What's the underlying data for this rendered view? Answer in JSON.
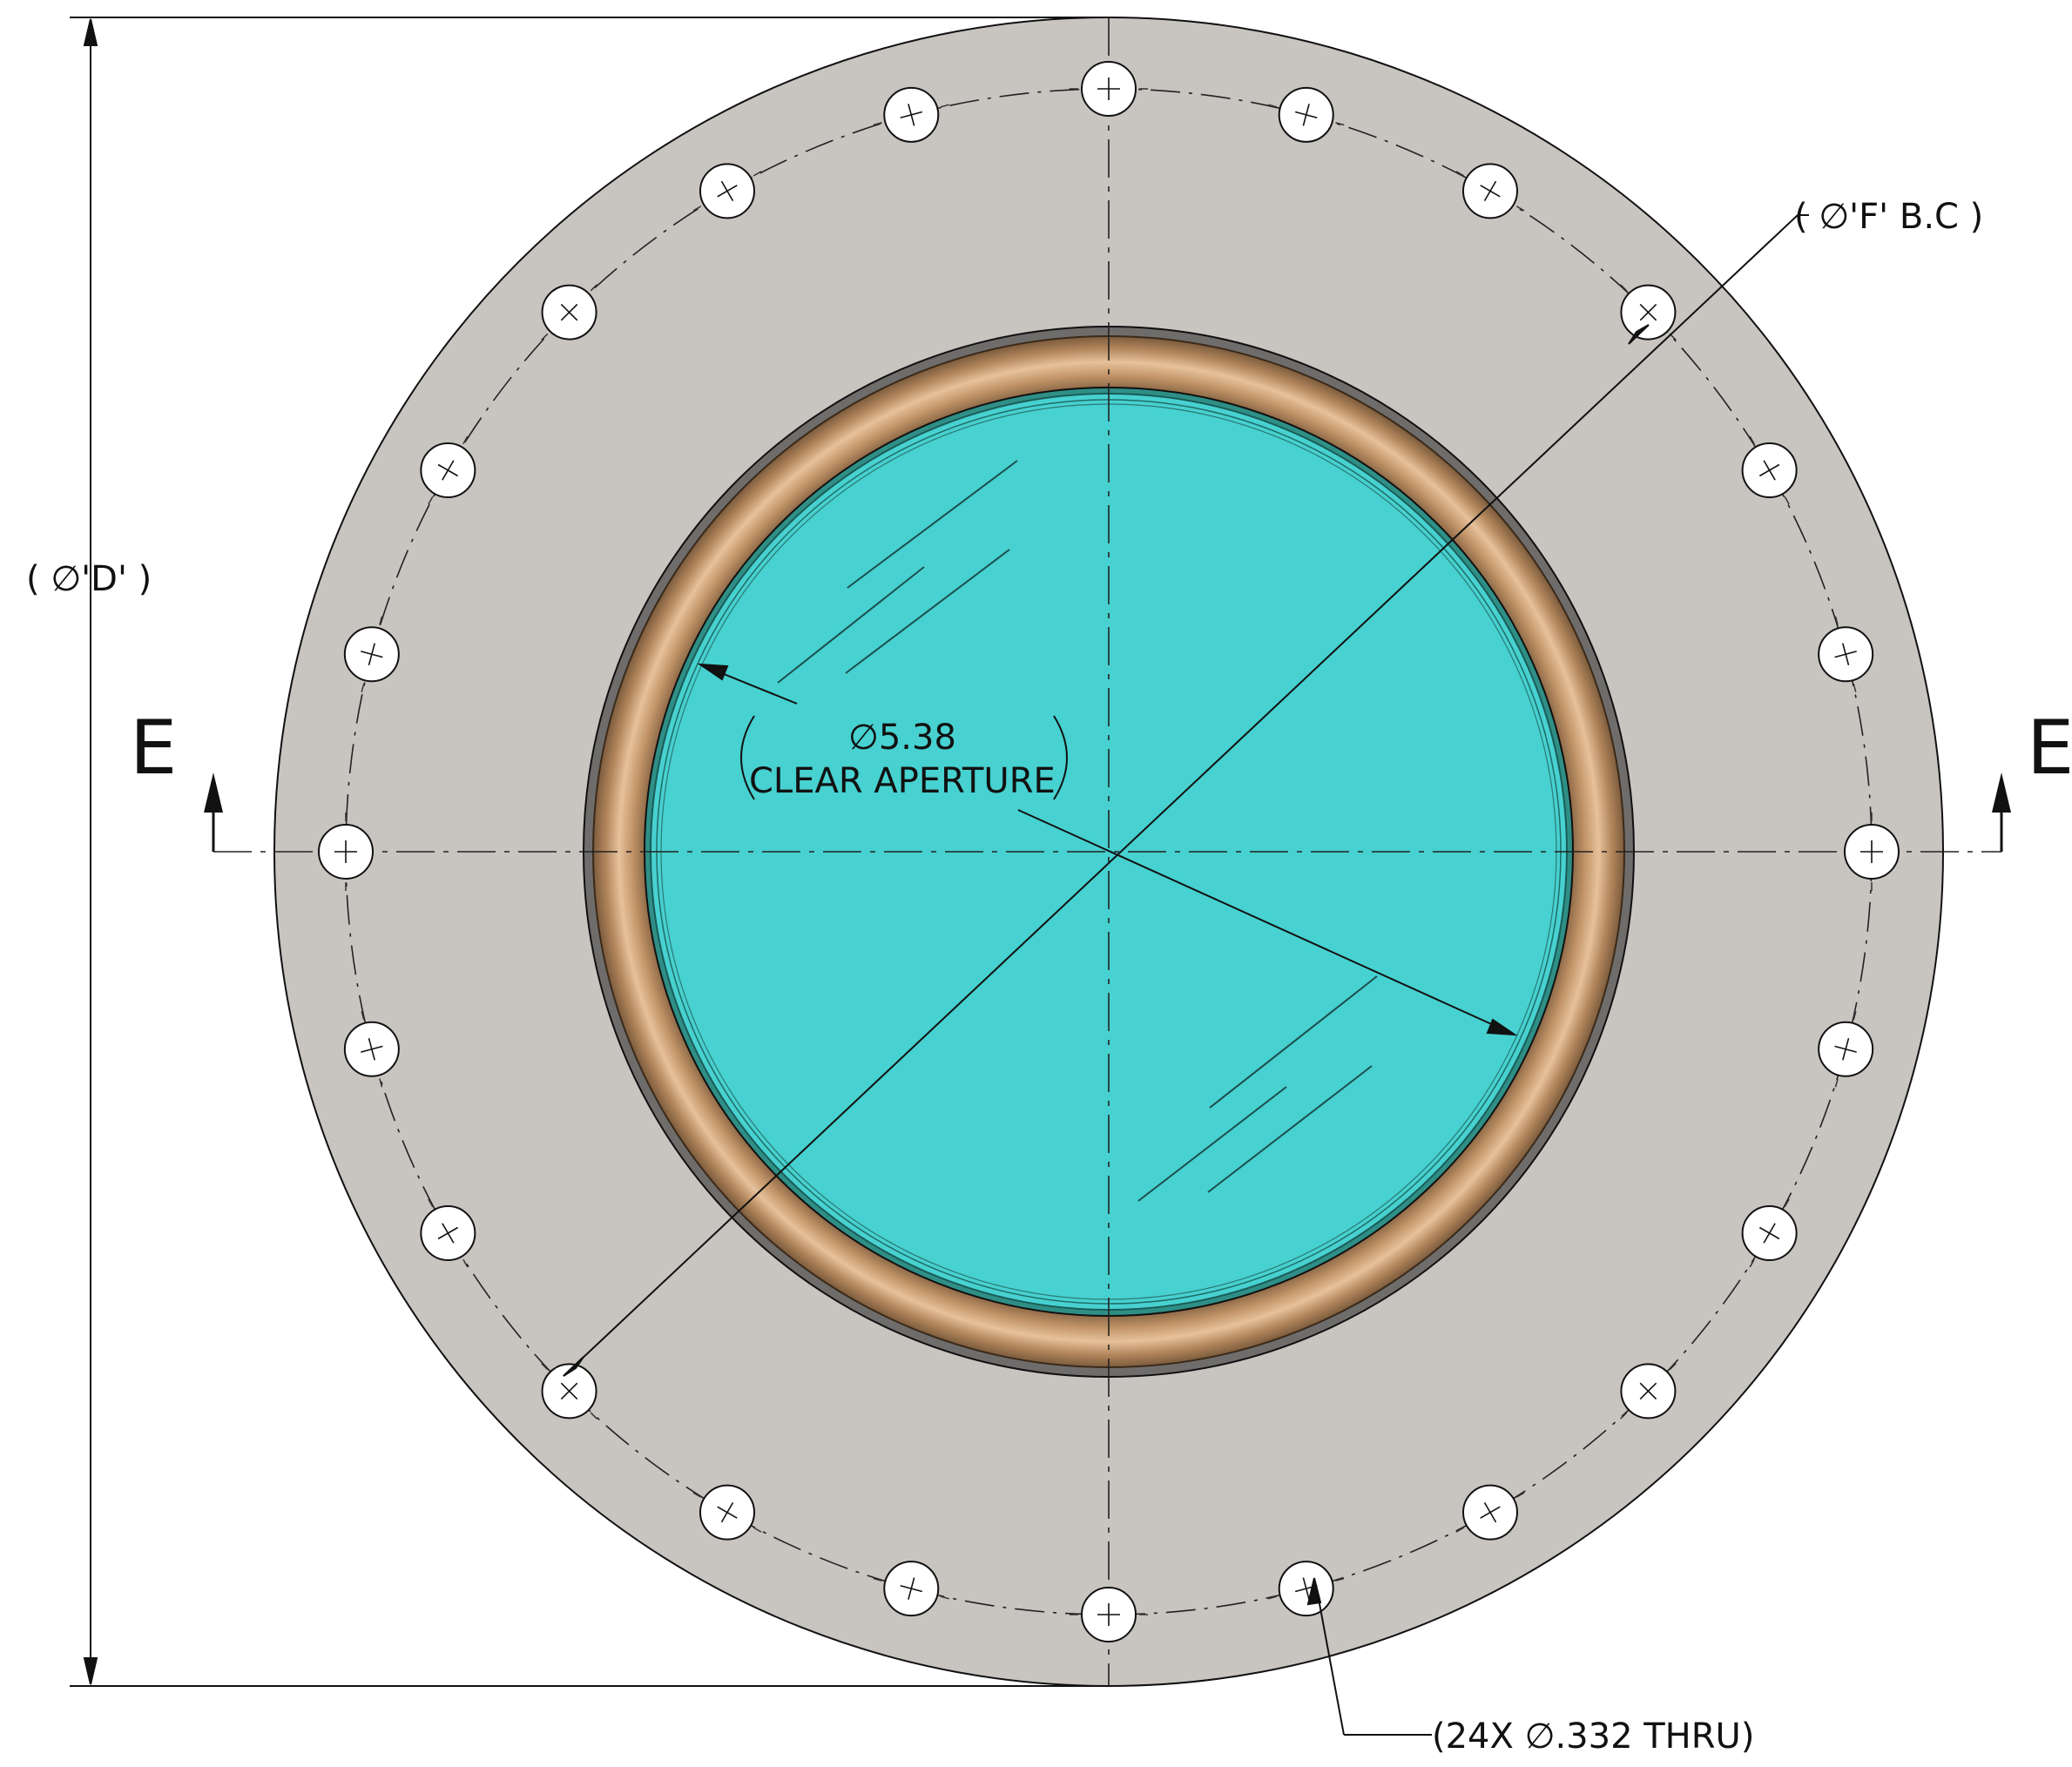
{
  "annotations": {
    "diameter_d_label": "( ∅'D' )",
    "bolt_circle_label": "( ∅'F' B.C )",
    "clear_aperture_value": "∅5.38",
    "clear_aperture_text": "CLEAR APERTURE",
    "holes_label": "(24X  ∅.332 THRU)",
    "section_label_left": "E",
    "section_label_right": "E"
  },
  "features": {
    "bolt_hole_count": 24,
    "clear_aperture_diameter": 5.38,
    "hole_diameter": 0.332
  },
  "colors": {
    "flange": "#c8c4c0",
    "window": "#47d1d0",
    "bronze_ring": "#b2855b",
    "housing": "#6f6d6c",
    "line": "#111111",
    "hole": "#ffffff"
  }
}
